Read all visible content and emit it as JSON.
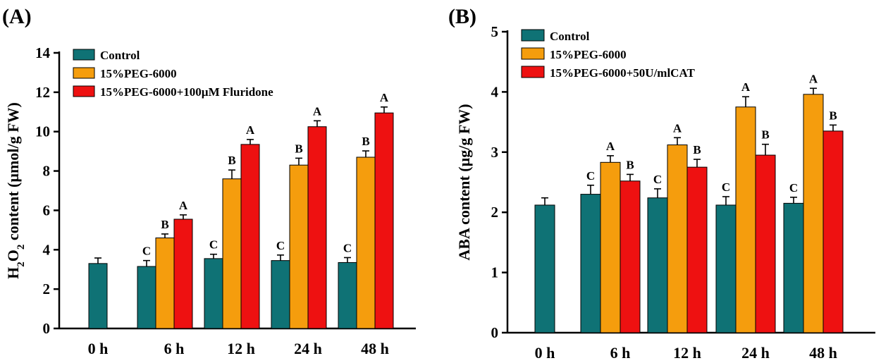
{
  "colors": {
    "control": "#0f7275",
    "peg": "#f59d0d",
    "treat": "#ee1111"
  },
  "chart_data": [
    {
      "type": "bar",
      "panel_label": "(A)",
      "title": "",
      "xlabel": "",
      "ylabel": "H2O2 content (µmol/g FW)",
      "ylabel_parts": {
        "pre": "H",
        "sub1": "2",
        "mid": "O",
        "sub2": "2",
        "post": " content (µmol/g FW)"
      },
      "ylim": [
        0,
        14
      ],
      "yticks": [
        "0",
        "2",
        "4",
        "6",
        "8",
        "10",
        "12",
        "14"
      ],
      "categories": [
        "0 h",
        "6 h",
        "12 h",
        "24 h",
        "48 h"
      ],
      "series": [
        {
          "name": "Control",
          "color_key": "control",
          "values": [
            3.3,
            3.15,
            3.55,
            3.45,
            3.35
          ],
          "errors": [
            0.28,
            0.3,
            0.22,
            0.28,
            0.25
          ],
          "labels": [
            "",
            "C",
            "C",
            "C",
            "C"
          ]
        },
        {
          "name": "15%PEG-6000",
          "color_key": "peg",
          "values": [
            null,
            4.6,
            7.6,
            8.3,
            8.7
          ],
          "errors": [
            null,
            0.2,
            0.45,
            0.35,
            0.32
          ],
          "labels": [
            "",
            "B",
            "B",
            "B",
            "B"
          ]
        },
        {
          "name": "15%PEG-6000+100µM Fluridone",
          "color_key": "treat",
          "values": [
            null,
            5.55,
            9.35,
            10.25,
            10.95
          ],
          "errors": [
            null,
            0.22,
            0.25,
            0.3,
            0.3
          ],
          "labels": [
            "",
            "A",
            "A",
            "A",
            "A"
          ]
        }
      ]
    },
    {
      "type": "bar",
      "panel_label": "(B)",
      "title": "",
      "xlabel": "",
      "ylabel": "ABA content (µg/g FW)",
      "ylabel_parts": {
        "pre": "ABA content (µg/g FW)",
        "sub1": "",
        "mid": "",
        "sub2": "",
        "post": ""
      },
      "ylim": [
        0,
        5
      ],
      "yticks": [
        "0",
        "1",
        "2",
        "3",
        "4",
        "5"
      ],
      "categories": [
        "0 h",
        "6 h",
        "12 h",
        "24 h",
        "48 h"
      ],
      "series": [
        {
          "name": "Control",
          "color_key": "control",
          "values": [
            2.12,
            2.3,
            2.24,
            2.12,
            2.15
          ],
          "errors": [
            0.12,
            0.15,
            0.15,
            0.14,
            0.1
          ],
          "labels": [
            "",
            "C",
            "C",
            "C",
            "C"
          ]
        },
        {
          "name": "15%PEG-6000",
          "color_key": "peg",
          "values": [
            null,
            2.83,
            3.12,
            3.75,
            3.96
          ],
          "errors": [
            null,
            0.11,
            0.12,
            0.17,
            0.1
          ],
          "labels": [
            "",
            "A",
            "A",
            "A",
            "A"
          ]
        },
        {
          "name": "15%PEG-6000+50U/mlCAT",
          "color_key": "treat",
          "values": [
            null,
            2.52,
            2.75,
            2.95,
            3.35
          ],
          "errors": [
            null,
            0.11,
            0.13,
            0.18,
            0.1
          ],
          "labels": [
            "",
            "B",
            "B",
            "B",
            "B"
          ]
        }
      ]
    }
  ]
}
